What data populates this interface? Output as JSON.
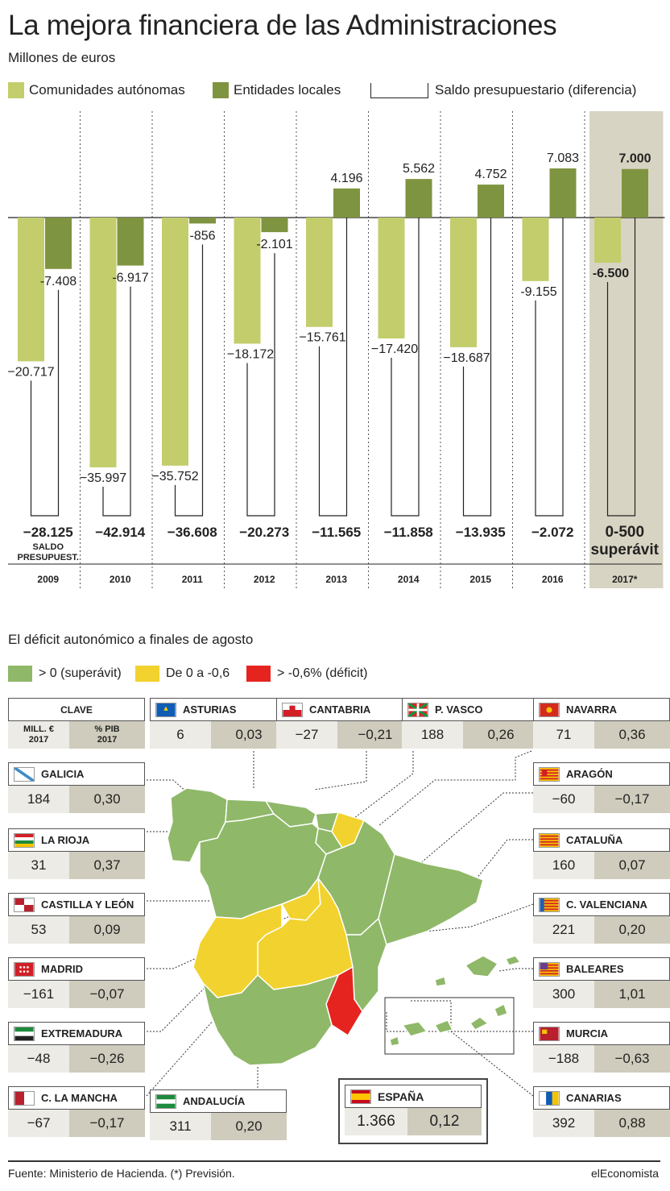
{
  "title": "La mejora financiera de las Administraciones",
  "subtitle": "Millones de euros",
  "legend": {
    "ccaa": "Comunidades autónomas",
    "local": "Entidades locales",
    "saldo": "Saldo presupuestario (diferencia)"
  },
  "colors": {
    "ccaa": "#c3cd6c",
    "local": "#7f9440",
    "highlight": "#d8d4c3",
    "green": "#8fb868",
    "yellow": "#f2d22e",
    "red": "#e52420"
  },
  "chart_data": {
    "type": "bar",
    "categories": [
      "2009",
      "2010",
      "2011",
      "2012",
      "2013",
      "2014",
      "2015",
      "2016",
      "2017*"
    ],
    "series": [
      {
        "name": "Comunidades autónomas",
        "values": [
          -20717,
          -35997,
          -35752,
          -18172,
          -15761,
          -17420,
          -18687,
          -9155,
          -6500
        ]
      },
      {
        "name": "Entidades locales",
        "values": [
          -7408,
          -6917,
          -856,
          -2101,
          4196,
          5562,
          4752,
          7083,
          7000
        ]
      }
    ],
    "value_labels_ccaa": [
      "−20.717",
      "−35.997",
      "−35.752",
      "−18.172",
      "−15.761",
      "−17.420",
      "−18.687",
      "-9.155",
      "-6.500"
    ],
    "value_labels_local": [
      "-7.408",
      "-6.917",
      "-856",
      "-2.101",
      "4.196",
      "5.562",
      "4.752",
      "7.083",
      "7.000"
    ],
    "saldo_labels": [
      "−28.125",
      "−42.914",
      "−36.608",
      "−20.273",
      "−11.565",
      "−11.858",
      "−13.935",
      "−2.072",
      "0-500"
    ],
    "saldo_note_first": "SALDO PRESUPUEST.",
    "saldo_note_last": "superávit",
    "ylim": [
      -37000,
      8500
    ],
    "highlighted_category": "2017*"
  },
  "section2": {
    "title": "El déficit autonómico a finales de agosto",
    "legend": {
      "green": "> 0 (superávit)",
      "yellow": "De 0 a -0,6",
      "red": "> -0,6% (déficit)"
    },
    "clave": {
      "title": "CLAVE",
      "col1": "MILL. €\n2017",
      "col2": "% PIB\n2017"
    },
    "regions": [
      {
        "name": "ASTURIAS",
        "mill": "6",
        "pib": "0,03"
      },
      {
        "name": "CANTABRIA",
        "mill": "−27",
        "pib": "−0,21"
      },
      {
        "name": "P. VASCO",
        "mill": "188",
        "pib": "0,26"
      },
      {
        "name": "NAVARRA",
        "mill": "71",
        "pib": "0,36"
      },
      {
        "name": "GALICIA",
        "mill": "184",
        "pib": "0,30"
      },
      {
        "name": "ARAGÓN",
        "mill": "−60",
        "pib": "−0,17"
      },
      {
        "name": "LA RIOJA",
        "mill": "31",
        "pib": "0,37"
      },
      {
        "name": "CATALUÑA",
        "mill": "160",
        "pib": "0,07"
      },
      {
        "name": "CASTILLA Y LEÓN",
        "mill": "53",
        "pib": "0,09"
      },
      {
        "name": "C. VALENCIANA",
        "mill": "221",
        "pib": "0,20"
      },
      {
        "name": "MADRID",
        "mill": "−161",
        "pib": "−0,07"
      },
      {
        "name": "BALEARES",
        "mill": "300",
        "pib": "1,01"
      },
      {
        "name": "EXTREMADURA",
        "mill": "−48",
        "pib": "−0,26"
      },
      {
        "name": "MURCIA",
        "mill": "−188",
        "pib": "−0,63"
      },
      {
        "name": "C. LA MANCHA",
        "mill": "−67",
        "pib": "−0,17"
      },
      {
        "name": "ANDALUCÍA",
        "mill": "311",
        "pib": "0,20"
      },
      {
        "name": "CANARIAS",
        "mill": "392",
        "pib": "0,88"
      }
    ],
    "espana": {
      "name": "ESPAÑA",
      "mill": "1.366",
      "pib": "0,12"
    }
  },
  "footer": {
    "source": "Fuente: Ministerio de Hacienda. (*) Previsión.",
    "brand": "elEconomista"
  }
}
